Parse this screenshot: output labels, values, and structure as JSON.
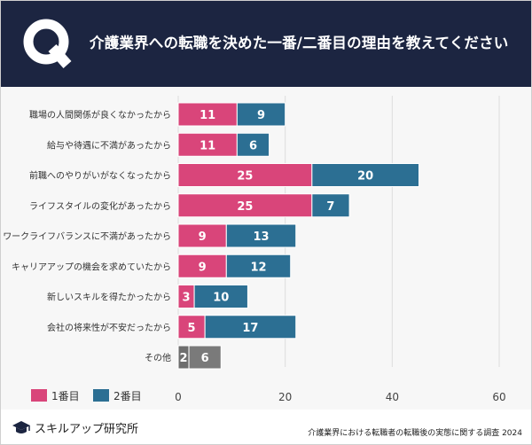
{
  "header": {
    "q_letter": "Q",
    "title": "介護業界への転職を決めた一番/二番目の理由を教えてください"
  },
  "chart_data": {
    "type": "bar",
    "orientation": "horizontal",
    "stacked": true,
    "categories": [
      "職場の人間関係が良くなかったから",
      "給与や待遇に不満があったから",
      "前職へのやりがいがなくなったから",
      "ライフスタイルの変化があったから",
      "ワークライフバランスに不満があったから",
      "キャリアアップの機会を求めていたから",
      "新しいスキルを得たかったから",
      "会社の将来性が不安だったから",
      "その他"
    ],
    "series": [
      {
        "name": "1番目",
        "values": [
          11,
          11,
          25,
          25,
          9,
          9,
          3,
          5,
          2
        ]
      },
      {
        "name": "2番目",
        "values": [
          9,
          6,
          20,
          7,
          13,
          12,
          10,
          17,
          6
        ]
      }
    ],
    "xlim": [
      0,
      60
    ],
    "xticks": [
      0,
      20,
      40,
      60
    ],
    "grid": true,
    "legend": "bottom-left",
    "colors": {
      "first": "#d9457a",
      "second": "#2c6f93",
      "other_first": "#6e6e6e",
      "other_second": "#7a7a7a"
    }
  },
  "legend": {
    "first_label": "1番目",
    "second_label": "2番目"
  },
  "footer": {
    "brand": "スキルアップ研究所",
    "source": "介護業界における転職者の転職後の実態に関する調査 2024"
  }
}
